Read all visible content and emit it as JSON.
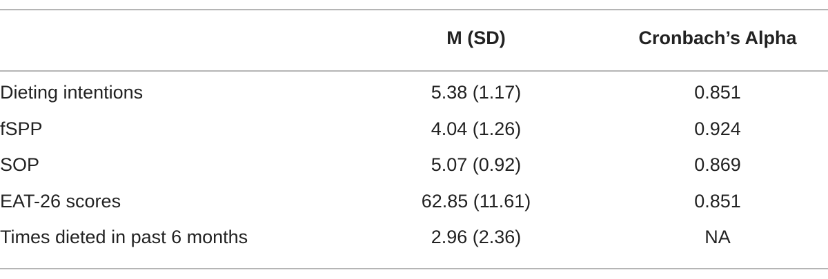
{
  "table": {
    "header": [
      "",
      "M (SD)",
      "Cronbach’s Alpha"
    ],
    "rows": [
      [
        "Dieting intentions",
        "5.38 (1.17)",
        "0.851"
      ],
      [
        "fSPP",
        "4.04 (1.26)",
        "0.924"
      ],
      [
        "SOP",
        "5.07 (0.92)",
        "0.869"
      ],
      [
        "EAT-26 scores",
        "62.85 (11.61)",
        "0.851"
      ],
      [
        "Times dieted in past 6 months",
        "2.96 (2.36)",
        "NA"
      ]
    ]
  }
}
